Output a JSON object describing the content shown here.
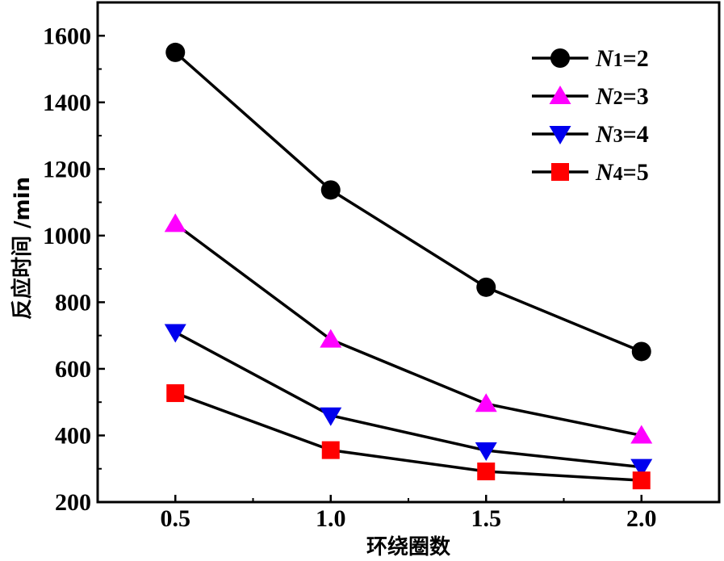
{
  "chart_data": {
    "type": "line",
    "title": "",
    "xlabel": "环绕圈数",
    "ylabel": "反应时间 /min",
    "x": [
      0.5,
      1.0,
      1.5,
      2.0
    ],
    "x_tick_labels": [
      "0.5",
      "1.0",
      "1.5",
      "2.0"
    ],
    "xlim": [
      0.25,
      2.25
    ],
    "ylim": [
      200,
      1700
    ],
    "y_ticks": [
      200,
      400,
      600,
      800,
      1000,
      1200,
      1400,
      1600
    ],
    "y_tick_labels": [
      "200",
      "400",
      "600",
      "800",
      "1000",
      "1200",
      "1400",
      "1600"
    ],
    "grid": false,
    "legend_position": "top-right",
    "series": [
      {
        "name": "N1=2",
        "legend": {
          "var": "N",
          "sub": "1",
          "rest": "=2"
        },
        "marker": "circle",
        "color": "#000000",
        "values": [
          1550,
          1137,
          845,
          652
        ]
      },
      {
        "name": "N2=3",
        "legend": {
          "var": "N",
          "sub": "2",
          "rest": "=3"
        },
        "marker": "triangle-up",
        "color": "#ff00ff",
        "values": [
          1035,
          688,
          495,
          400
        ]
      },
      {
        "name": "N3=4",
        "legend": {
          "var": "N",
          "sub": "3",
          "rest": "=4"
        },
        "marker": "triangle-down",
        "color": "#0000ee",
        "values": [
          710,
          460,
          355,
          305
        ]
      },
      {
        "name": "N4=5",
        "legend": {
          "var": "N",
          "sub": "4",
          "rest": "=5"
        },
        "marker": "square",
        "color": "#ff0000",
        "values": [
          527,
          356,
          292,
          265
        ]
      }
    ]
  }
}
